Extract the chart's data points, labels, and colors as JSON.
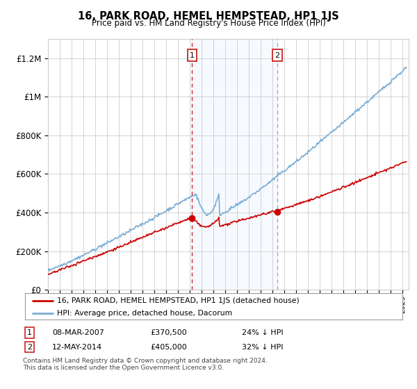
{
  "title": "16, PARK ROAD, HEMEL HEMPSTEAD, HP1 1JS",
  "subtitle": "Price paid vs. HM Land Registry's House Price Index (HPI)",
  "ylabel_ticks": [
    "£0",
    "£200K",
    "£400K",
    "£600K",
    "£800K",
    "£1M",
    "£1.2M"
  ],
  "ytick_values": [
    0,
    200000,
    400000,
    600000,
    800000,
    1000000,
    1200000
  ],
  "ylim": [
    0,
    1300000
  ],
  "xlim_start": 1995.0,
  "xlim_end": 2025.5,
  "sale1_x": 2007.19,
  "sale1_y": 370500,
  "sale2_x": 2014.37,
  "sale2_y": 405000,
  "sale1_date": "08-MAR-2007",
  "sale1_price": "£370,500",
  "sale1_hpi": "24% ↓ HPI",
  "sale2_date": "12-MAY-2014",
  "sale2_price": "£405,000",
  "sale2_hpi": "32% ↓ HPI",
  "red_line_color": "#cc0000",
  "blue_line_color": "#7aadd4",
  "shaded_region_color": "#ddeeff",
  "grid_color": "#cccccc",
  "legend_label_red": "16, PARK ROAD, HEMEL HEMPSTEAD, HP1 1JS (detached house)",
  "legend_label_blue": "HPI: Average price, detached house, Dacorum",
  "footer1": "Contains HM Land Registry data © Crown copyright and database right 2024.",
  "footer2": "This data is licensed under the Open Government Licence v3.0.",
  "background_color": "#ffffff"
}
